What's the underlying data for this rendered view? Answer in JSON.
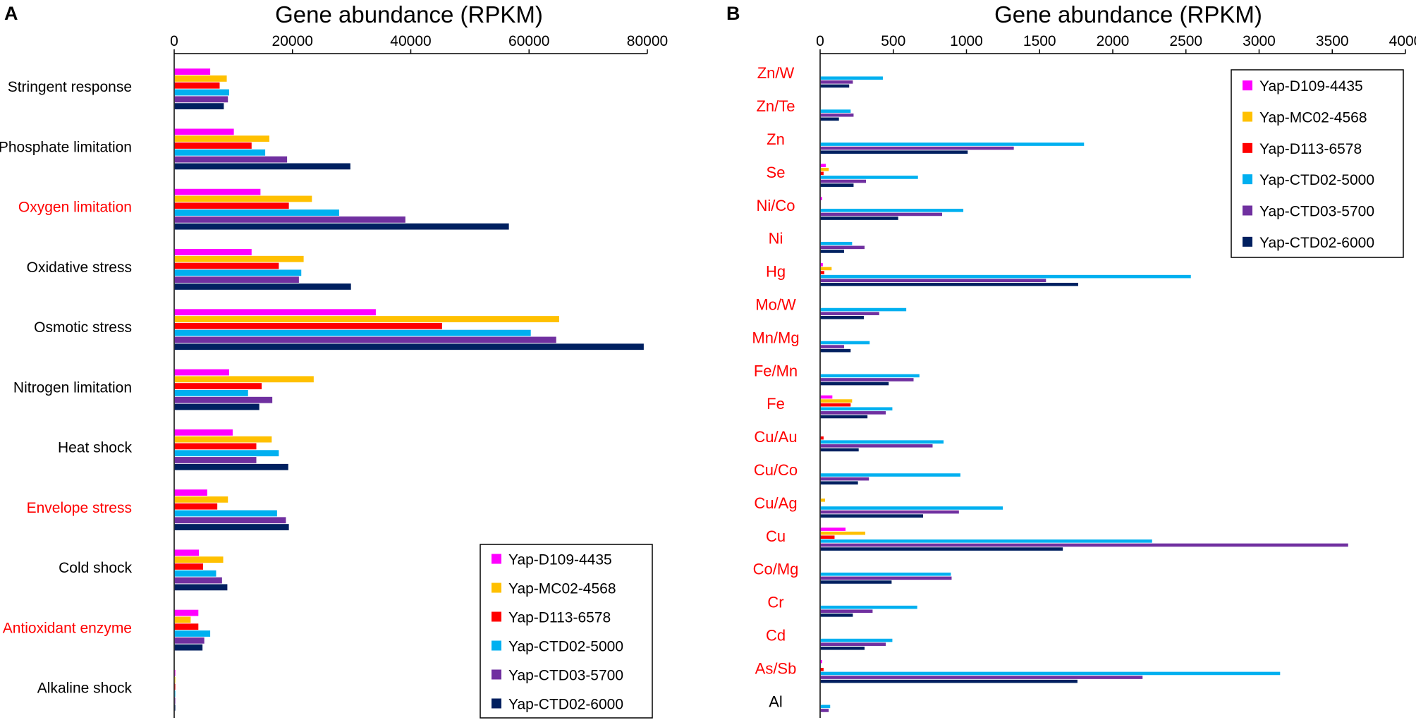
{
  "colors": {
    "Yap-D109-4435": "#ff00ff",
    "Yap-MC02-4568": "#ffc000",
    "Yap-D113-6578": "#ff0000",
    "Yap-CTD02-5000": "#00b0f0",
    "Yap-CTD03-5700": "#7030a0",
    "Yap-CTD02-6000": "#002060",
    "highlight": "#ff0000",
    "text": "#000000"
  },
  "chart_data": [
    {
      "panel": "A",
      "type": "bar",
      "orientation": "horizontal",
      "title": "Gene abundance (RPKM)",
      "xlabel": "Gene abundance (RPKM)",
      "ylabel": "",
      "xlim": [
        0,
        80000
      ],
      "xticks": [
        "0",
        "20000",
        "40000",
        "60000",
        "80000"
      ],
      "grid": false,
      "legend_position": "bottom-right",
      "categories": [
        "Stringent response",
        "Phosphate limitation",
        "Oxygen limitation",
        "Oxidative stress",
        "Osmotic stress",
        "Nitrogen limitation",
        "Heat shock",
        "Envelope stress",
        "Cold shock",
        "Antioxidant enzyme",
        "Alkaline shock"
      ],
      "highlighted_categories": [
        "Oxygen limitation",
        "Envelope stress",
        "Antioxidant enzyme"
      ],
      "series": [
        {
          "name": "Yap-D109-4435",
          "values": [
            6000,
            10000,
            14500,
            13000,
            34000,
            9200,
            9800,
            5500,
            4100,
            4000,
            100
          ]
        },
        {
          "name": "Yap-MC02-4568",
          "values": [
            8800,
            16000,
            23200,
            21800,
            65000,
            23500,
            16400,
            9000,
            8200,
            2700,
            100
          ]
        },
        {
          "name": "Yap-D113-6578",
          "values": [
            7600,
            13000,
            19300,
            17600,
            45200,
            14700,
            13800,
            7200,
            4800,
            4000,
            100
          ]
        },
        {
          "name": "Yap-CTD02-5000",
          "values": [
            9200,
            15300,
            27800,
            21400,
            60200,
            12400,
            17600,
            17300,
            7000,
            6000,
            100
          ]
        },
        {
          "name": "Yap-CTD03-5700",
          "values": [
            9000,
            19000,
            39000,
            21000,
            64500,
            16500,
            13800,
            18800,
            8000,
            5000,
            100
          ]
        },
        {
          "name": "Yap-CTD02-6000",
          "values": [
            8300,
            29700,
            56500,
            29800,
            79300,
            14300,
            19200,
            19300,
            8900,
            4700,
            100
          ]
        }
      ]
    },
    {
      "panel": "B",
      "type": "bar",
      "orientation": "horizontal",
      "title": "Gene abundance (RPKM)",
      "xlabel": "Gene abundance (RPKM)",
      "ylabel": "",
      "xlim": [
        0,
        4000
      ],
      "xticks": [
        "0",
        "500",
        "1000",
        "1500",
        "2000",
        "2500",
        "3000",
        "3500",
        "4000"
      ],
      "grid": false,
      "legend_position": "top-right",
      "categories": [
        "Zn/W",
        "Zn/Te",
        "Zn",
        "Se",
        "Ni/Co",
        "Ni",
        "Hg",
        "Mo/W",
        "Mn/Mg",
        "Fe/Mn",
        "Fe",
        "Cu/Au",
        "Cu/Co",
        "Cu/Ag",
        "Cu",
        "Co/Mg",
        "Cr",
        "Cd",
        "As/Sb",
        "Al"
      ],
      "highlighted_categories": [
        "Zn/W",
        "Zn/Te",
        "Zn",
        "Se",
        "Ni/Co",
        "Ni",
        "Hg",
        "Mo/W",
        "Mn/Mg",
        "Fe/Mn",
        "Fe",
        "Cu/Au",
        "Cu/Co",
        "Cu/Ag",
        "Cu",
        "Co/Mg",
        "Cr",
        "Cd",
        "As/Sb"
      ],
      "series": [
        {
          "name": "Yap-D109-4435",
          "values": [
            0,
            0,
            0,
            35,
            10,
            0,
            15,
            0,
            0,
            0,
            80,
            0,
            0,
            0,
            170,
            0,
            0,
            0,
            10,
            0
          ]
        },
        {
          "name": "Yap-MC02-4568",
          "values": [
            0,
            0,
            0,
            55,
            0,
            0,
            75,
            0,
            0,
            0,
            215,
            0,
            0,
            30,
            305,
            0,
            0,
            0,
            0,
            0
          ]
        },
        {
          "name": "Yap-D113-6578",
          "values": [
            0,
            0,
            0,
            20,
            0,
            0,
            25,
            0,
            0,
            0,
            205,
            20,
            0,
            0,
            95,
            0,
            0,
            0,
            20,
            0
          ]
        },
        {
          "name": "Yap-CTD02-5000",
          "values": [
            425,
            205,
            1800,
            665,
            975,
            215,
            2530,
            585,
            335,
            675,
            490,
            840,
            955,
            1245,
            2265,
            890,
            660,
            490,
            3140,
            65
          ]
        },
        {
          "name": "Yap-CTD03-5700",
          "values": [
            220,
            225,
            1320,
            310,
            830,
            300,
            1540,
            400,
            160,
            635,
            445,
            765,
            330,
            945,
            3605,
            895,
            355,
            445,
            2200,
            55
          ]
        },
        {
          "name": "Yap-CTD02-6000",
          "values": [
            195,
            125,
            1005,
            225,
            530,
            160,
            1760,
            295,
            205,
            465,
            320,
            260,
            255,
            700,
            1655,
            485,
            220,
            300,
            1755,
            0
          ]
        }
      ]
    }
  ],
  "panels": [
    {
      "letter": "A"
    },
    {
      "letter": "B"
    }
  ]
}
